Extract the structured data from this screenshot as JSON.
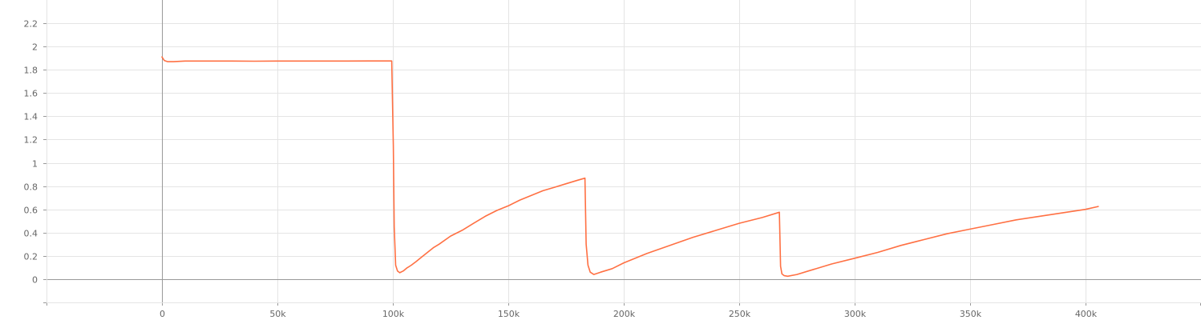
{
  "chart_data": {
    "type": "line",
    "title": "",
    "xlabel": "",
    "ylabel": "",
    "xlim": [
      -50000,
      450000
    ],
    "ylim": [
      -0.2,
      2.4
    ],
    "grid": true,
    "legend": "none",
    "x_ticks": [
      {
        "value": 0,
        "label": "0"
      },
      {
        "value": 50000,
        "label": "50k"
      },
      {
        "value": 100000,
        "label": "100k"
      },
      {
        "value": 150000,
        "label": "150k"
      },
      {
        "value": 200000,
        "label": "200k"
      },
      {
        "value": 250000,
        "label": "250k"
      },
      {
        "value": 300000,
        "label": "300k"
      },
      {
        "value": 350000,
        "label": "350k"
      },
      {
        "value": 400000,
        "label": "400k"
      }
    ],
    "y_ticks": [
      {
        "value": 0,
        "label": "0"
      },
      {
        "value": 0.2,
        "label": "0.2"
      },
      {
        "value": 0.4,
        "label": "0.4"
      },
      {
        "value": 0.6,
        "label": "0.6"
      },
      {
        "value": 0.8,
        "label": "0.8"
      },
      {
        "value": 1,
        "label": "1"
      },
      {
        "value": 1.2,
        "label": "1.2"
      },
      {
        "value": 1.4,
        "label": "1.4"
      },
      {
        "value": 1.6,
        "label": "1.6"
      },
      {
        "value": 1.8,
        "label": "1.8"
      },
      {
        "value": 2,
        "label": "2"
      },
      {
        "value": 2.2,
        "label": "2.2"
      }
    ],
    "series": [
      {
        "color": "#ff7043",
        "x": [
          0,
          1000,
          2500,
          5000,
          10000,
          20000,
          30000,
          40000,
          50000,
          60000,
          70000,
          80000,
          90000,
          99500,
          100200,
          100600,
          101200,
          102000,
          103000,
          104500,
          106000,
          108000,
          110000,
          112500,
          115000,
          117500,
          120000,
          125000,
          130000,
          135000,
          140000,
          145000,
          150000,
          155000,
          160000,
          165000,
          170000,
          175000,
          180000,
          183200,
          183700,
          184500,
          185500,
          187000,
          190000,
          195000,
          200000,
          205000,
          210000,
          220000,
          230000,
          240000,
          250000,
          260000,
          267400,
          267900,
          268500,
          269500,
          271000,
          275000,
          280000,
          290000,
          300000,
          310000,
          320000,
          330000,
          340000,
          350000,
          360000,
          370000,
          380000,
          390000,
          400000,
          405500
        ],
        "y": [
          1.91,
          1.88,
          1.87,
          1.87,
          1.875,
          1.875,
          1.875,
          1.874,
          1.875,
          1.875,
          1.875,
          1.875,
          1.876,
          1.876,
          1.15,
          0.45,
          0.12,
          0.07,
          0.055,
          0.07,
          0.095,
          0.12,
          0.15,
          0.19,
          0.23,
          0.27,
          0.3,
          0.37,
          0.42,
          0.48,
          0.54,
          0.59,
          0.63,
          0.68,
          0.72,
          0.76,
          0.79,
          0.82,
          0.85,
          0.868,
          0.3,
          0.12,
          0.06,
          0.04,
          0.06,
          0.09,
          0.14,
          0.18,
          0.22,
          0.29,
          0.36,
          0.42,
          0.48,
          0.53,
          0.575,
          0.11,
          0.045,
          0.03,
          0.025,
          0.04,
          0.07,
          0.13,
          0.18,
          0.23,
          0.29,
          0.34,
          0.39,
          0.43,
          0.47,
          0.51,
          0.54,
          0.57,
          0.6,
          0.625
        ]
      }
    ]
  }
}
